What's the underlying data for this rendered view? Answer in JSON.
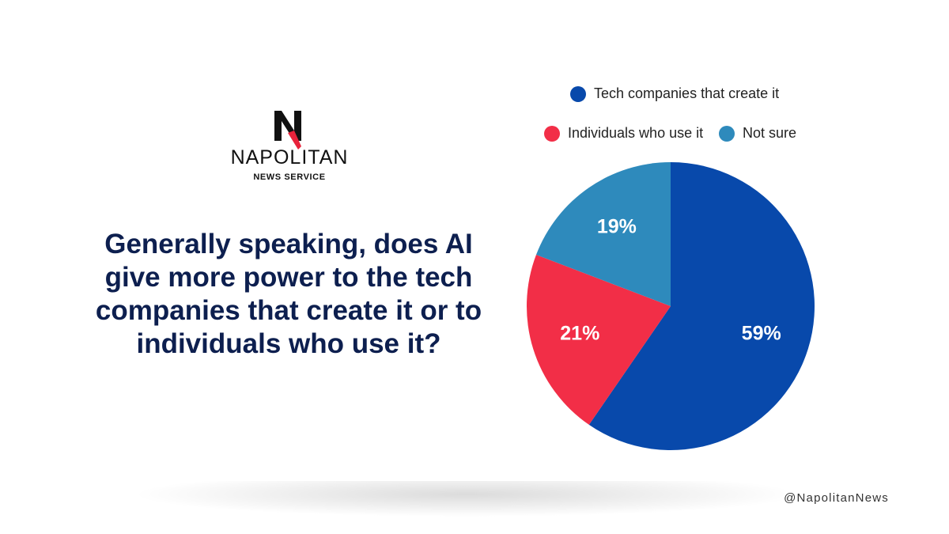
{
  "brand": {
    "name": "NAPOLITAN",
    "tagline": "NEWS SERVICE"
  },
  "footer": "@NapolitanNews",
  "chart_data": {
    "type": "pie",
    "title": "Generally speaking, does AI give more power to the tech companies that create it or to individuals who use it?",
    "categories": [
      "Tech companies that create it",
      "Individuals who use it",
      "Not sure"
    ],
    "values": [
      59,
      21,
      19
    ],
    "value_labels": [
      "59%",
      "21%",
      "19%"
    ],
    "colors": [
      "#0849ab",
      "#f22e47",
      "#2e8abc"
    ]
  }
}
